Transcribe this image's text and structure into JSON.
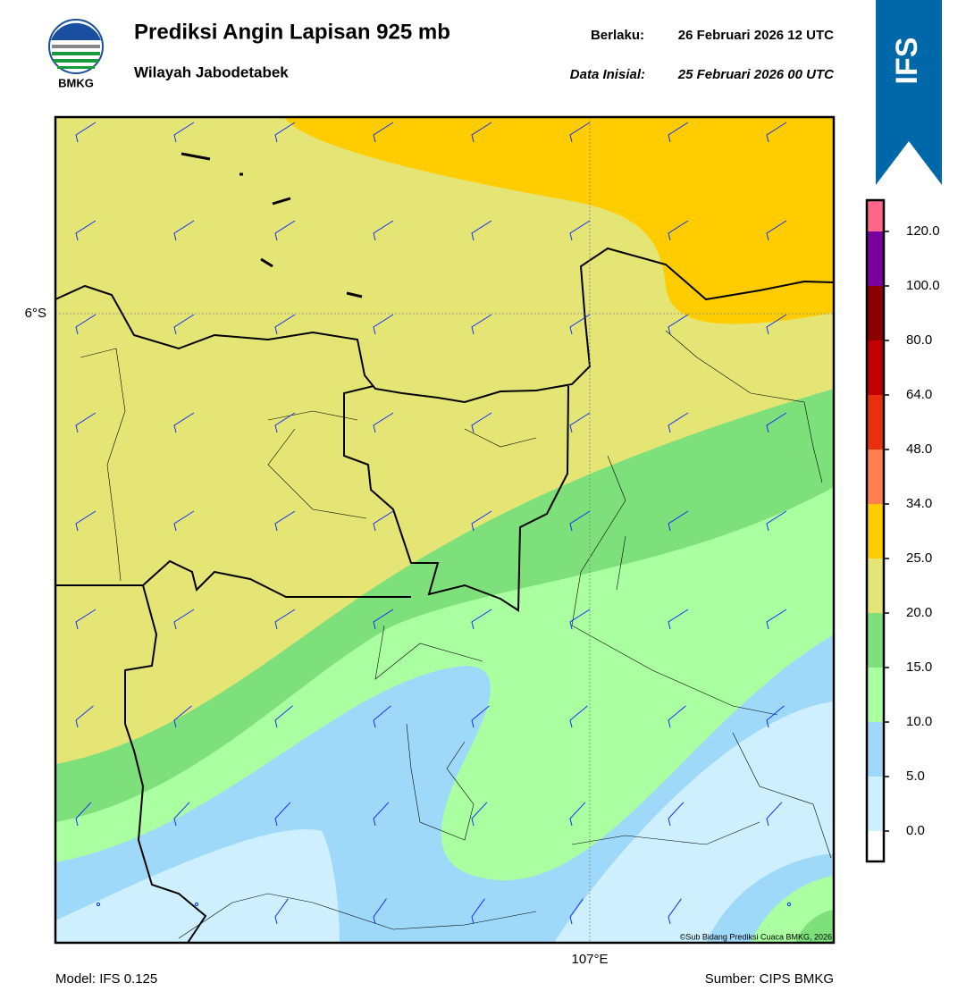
{
  "header": {
    "logo_text": "BMKG",
    "title": "Prediksi Angin Lapisan 925 mb",
    "subtitle": "Wilayah Jabodetabek",
    "valid_label": "Berlaku:",
    "valid_time": "26 Februari 2026 12 UTC",
    "init_label": "Data Inisial:",
    "init_time": "25 Februari 2026 00 UTC"
  },
  "badge": "IFS",
  "map": {
    "lat_label": "6°S",
    "lon_label": "107°E",
    "copyright": "©Sub Bidang Prediksi Cuaca BMKG, 2026"
  },
  "colorbar": {
    "colors": [
      "#ffffff",
      "#cdeffe",
      "#9fd9f9",
      "#aaffa0",
      "#7de07a",
      "#e5e575",
      "#ffcc00",
      "#ff7f50",
      "#e8300f",
      "#c00000",
      "#8b0000",
      "#7a00a0",
      "#ff6688"
    ],
    "labels": [
      "0.0",
      "5.0",
      "10.0",
      "15.0",
      "20.0",
      "25.0",
      "34.0",
      "48.0",
      "64.0",
      "80.0",
      "100.0",
      "120.0"
    ]
  },
  "footer": {
    "model": "Model: IFS 0.125",
    "source": "Sumber: CIPS BMKG"
  }
}
